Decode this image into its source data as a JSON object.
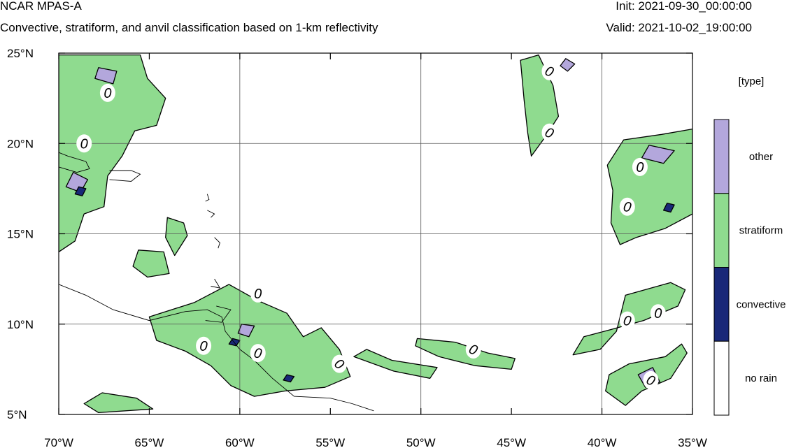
{
  "header": {
    "title": "NCAR MPAS-A",
    "subtitle": "Convective, stratiform, and anvil classification based on 1-km reflectivity",
    "init": "Init: 2021-09-30_00:00:00",
    "valid": "Valid: 2021-10-02_19:00:00"
  },
  "map": {
    "lon_range": [
      -70,
      -35
    ],
    "lat_range": [
      5,
      25
    ],
    "lon_ticks": [
      {
        "value": -70,
        "label": "70°W"
      },
      {
        "value": -65,
        "label": "65°W"
      },
      {
        "value": -60,
        "label": "60°W"
      },
      {
        "value": -55,
        "label": "55°W"
      },
      {
        "value": -50,
        "label": "50°W"
      },
      {
        "value": -45,
        "label": "45°W"
      },
      {
        "value": -40,
        "label": "40°W"
      },
      {
        "value": -35,
        "label": "35°W"
      }
    ],
    "lat_ticks": [
      {
        "value": 25,
        "label": "25°N"
      },
      {
        "value": 20,
        "label": "20°N"
      },
      {
        "value": 15,
        "label": "15°N"
      },
      {
        "value": 10,
        "label": "10°N"
      },
      {
        "value": 5,
        "label": "5°N"
      }
    ],
    "gridlines_lon": [
      -60,
      -50,
      -40
    ],
    "gridlines_lat": [
      20,
      15,
      10
    ],
    "contour_label": "0",
    "contour_label_positions": [
      {
        "lon": -67.3,
        "lat": 22.8,
        "angle": -70
      },
      {
        "lon": -68.6,
        "lat": 20.0,
        "angle": -70
      },
      {
        "lon": -62.0,
        "lat": 8.8,
        "angle": -65
      },
      {
        "lon": -59.0,
        "lat": 11.7,
        "angle": -70
      },
      {
        "lon": -59.0,
        "lat": 8.4,
        "angle": -60
      },
      {
        "lon": -54.5,
        "lat": 7.8,
        "angle": -30
      },
      {
        "lon": -47.1,
        "lat": 8.6,
        "angle": -45
      },
      {
        "lon": -42.9,
        "lat": 24.0,
        "angle": -45
      },
      {
        "lon": -42.9,
        "lat": 20.6,
        "angle": -45
      },
      {
        "lon": -37.9,
        "lat": 18.7,
        "angle": -70
      },
      {
        "lon": -38.6,
        "lat": 16.5,
        "angle": -60
      },
      {
        "lon": -38.6,
        "lat": 10.2,
        "angle": -60
      },
      {
        "lon": -36.9,
        "lat": 10.6,
        "angle": -70
      },
      {
        "lon": -37.3,
        "lat": 6.9,
        "angle": -45
      }
    ],
    "precip_regions": [
      {
        "type": "stratiform",
        "points": [
          [
            -70,
            24.9
          ],
          [
            -65.5,
            24.9
          ],
          [
            -65.1,
            23.6
          ],
          [
            -64.1,
            22.5
          ],
          [
            -64.6,
            21.0
          ],
          [
            -65.8,
            20.7
          ],
          [
            -66.5,
            19.3
          ],
          [
            -67.3,
            18.2
          ],
          [
            -67.5,
            16.5
          ],
          [
            -68.6,
            16.1
          ],
          [
            -69.1,
            14.6
          ],
          [
            -70,
            14.0
          ]
        ]
      },
      {
        "type": "stratiform",
        "points": [
          [
            -64.0,
            15.9
          ],
          [
            -63.1,
            15.6
          ],
          [
            -62.9,
            14.9
          ],
          [
            -63.6,
            13.8
          ],
          [
            -64.1,
            14.8
          ]
        ]
      },
      {
        "type": "stratiform",
        "points": [
          [
            -65.6,
            14.1
          ],
          [
            -64.2,
            14.0
          ],
          [
            -63.9,
            12.8
          ],
          [
            -65.1,
            12.6
          ],
          [
            -65.9,
            13.2
          ]
        ]
      },
      {
        "type": "stratiform",
        "points": [
          [
            -65.0,
            10.4
          ],
          [
            -62.5,
            11.2
          ],
          [
            -60.6,
            12.2
          ],
          [
            -59.0,
            11.3
          ],
          [
            -57.4,
            10.6
          ],
          [
            -56.5,
            9.3
          ],
          [
            -55.5,
            9.8
          ],
          [
            -54.5,
            8.6
          ],
          [
            -53.9,
            7.1
          ],
          [
            -55.3,
            6.5
          ],
          [
            -57.5,
            6.3
          ],
          [
            -59.2,
            6.0
          ],
          [
            -60.5,
            6.6
          ],
          [
            -61.6,
            7.7
          ],
          [
            -63.0,
            8.5
          ],
          [
            -64.6,
            9.1
          ]
        ]
      },
      {
        "type": "stratiform",
        "points": [
          [
            -53.7,
            8.2
          ],
          [
            -51.5,
            7.4
          ],
          [
            -49.5,
            7.0
          ],
          [
            -49.1,
            7.6
          ],
          [
            -51.6,
            8.0
          ],
          [
            -53.0,
            8.6
          ]
        ]
      },
      {
        "type": "stratiform",
        "points": [
          [
            -50.2,
            9.2
          ],
          [
            -48.1,
            9.0
          ],
          [
            -46.3,
            8.4
          ],
          [
            -44.8,
            8.1
          ],
          [
            -45.0,
            7.5
          ],
          [
            -47.0,
            7.7
          ],
          [
            -49.0,
            8.2
          ],
          [
            -50.3,
            8.8
          ]
        ]
      },
      {
        "type": "stratiform",
        "points": [
          [
            -67.6,
            6.2
          ],
          [
            -65.7,
            5.9
          ],
          [
            -64.8,
            5.3
          ],
          [
            -67.8,
            5.1
          ],
          [
            -68.6,
            5.6
          ]
        ]
      },
      {
        "type": "stratiform",
        "points": [
          [
            -44.5,
            24.6
          ],
          [
            -43.5,
            24.9
          ],
          [
            -42.7,
            23.2
          ],
          [
            -42.4,
            21.5
          ],
          [
            -43.1,
            20.4
          ],
          [
            -43.9,
            19.3
          ],
          [
            -44.1,
            20.6
          ],
          [
            -44.3,
            22.4
          ]
        ]
      },
      {
        "type": "stratiform",
        "points": [
          [
            -38.8,
            20.2
          ],
          [
            -36.7,
            20.5
          ],
          [
            -35,
            20.8
          ],
          [
            -35,
            16.1
          ],
          [
            -36.5,
            15.3
          ],
          [
            -38.1,
            14.8
          ],
          [
            -39.0,
            14.4
          ],
          [
            -39.5,
            15.6
          ],
          [
            -39.4,
            17.4
          ],
          [
            -39.7,
            18.8
          ]
        ]
      },
      {
        "type": "stratiform",
        "points": [
          [
            -38.7,
            11.6
          ],
          [
            -36.2,
            12.3
          ],
          [
            -35.4,
            11.9
          ],
          [
            -35.8,
            11.0
          ],
          [
            -37.7,
            10.2
          ],
          [
            -39.5,
            9.7
          ],
          [
            -41.0,
            9.3
          ],
          [
            -41.6,
            8.3
          ],
          [
            -40.1,
            8.6
          ],
          [
            -39.2,
            9.6
          ]
        ]
      },
      {
        "type": "stratiform",
        "points": [
          [
            -38.5,
            7.8
          ],
          [
            -36.5,
            8.2
          ],
          [
            -35.6,
            8.9
          ],
          [
            -35.3,
            8.4
          ],
          [
            -36.2,
            7.0
          ],
          [
            -37.8,
            6.3
          ],
          [
            -38.7,
            5.5
          ],
          [
            -39.8,
            6.3
          ],
          [
            -39.6,
            7.2
          ]
        ]
      },
      {
        "type": "other",
        "points": [
          [
            -37.4,
            19.9
          ],
          [
            -36.0,
            19.6
          ],
          [
            -36.6,
            18.9
          ],
          [
            -37.8,
            19.2
          ]
        ]
      },
      {
        "type": "other",
        "points": [
          [
            -67.8,
            24.2
          ],
          [
            -66.8,
            24.0
          ],
          [
            -67.0,
            23.3
          ],
          [
            -68.0,
            23.6
          ]
        ]
      },
      {
        "type": "other",
        "points": [
          [
            -69.2,
            18.4
          ],
          [
            -68.4,
            18.0
          ],
          [
            -68.8,
            17.3
          ],
          [
            -69.6,
            17.6
          ]
        ]
      },
      {
        "type": "other",
        "points": [
          [
            -59.9,
            10.0
          ],
          [
            -59.2,
            9.9
          ],
          [
            -59.5,
            9.3
          ],
          [
            -60.1,
            9.5
          ]
        ]
      },
      {
        "type": "other",
        "points": [
          [
            -42.0,
            24.7
          ],
          [
            -41.5,
            24.4
          ],
          [
            -41.9,
            24.0
          ],
          [
            -42.3,
            24.3
          ]
        ]
      },
      {
        "type": "other",
        "points": [
          [
            -38.0,
            7.2
          ],
          [
            -37.2,
            7.6
          ],
          [
            -36.8,
            6.8
          ],
          [
            -37.6,
            6.5
          ]
        ]
      },
      {
        "type": "convective",
        "points": [
          [
            -68.9,
            17.6
          ],
          [
            -68.5,
            17.5
          ],
          [
            -68.7,
            17.1
          ],
          [
            -69.1,
            17.2
          ]
        ]
      },
      {
        "type": "convective",
        "points": [
          [
            -60.4,
            9.2
          ],
          [
            -60.0,
            9.1
          ],
          [
            -60.2,
            8.8
          ],
          [
            -60.6,
            8.9
          ]
        ]
      },
      {
        "type": "convective",
        "points": [
          [
            -36.4,
            16.7
          ],
          [
            -36.0,
            16.6
          ],
          [
            -36.2,
            16.2
          ],
          [
            -36.6,
            16.3
          ]
        ]
      },
      {
        "type": "convective",
        "points": [
          [
            -57.4,
            7.2
          ],
          [
            -57.0,
            7.1
          ],
          [
            -57.2,
            6.8
          ],
          [
            -57.6,
            6.9
          ]
        ]
      }
    ],
    "coastlines": [
      [
        [
          -70,
          12.2
        ],
        [
          -68.5,
          11.6
        ],
        [
          -67.0,
          10.8
        ],
        [
          -65.0,
          10.2
        ],
        [
          -63.0,
          10.7
        ],
        [
          -61.8,
          10.8
        ],
        [
          -61.0,
          10.4
        ],
        [
          -60.8,
          9.6
        ],
        [
          -60.0,
          8.6
        ],
        [
          -59.2,
          8.0
        ],
        [
          -58.2,
          7.0
        ],
        [
          -57.0,
          6.0
        ],
        [
          -55.0,
          5.9
        ],
        [
          -53.8,
          5.6
        ],
        [
          -52.6,
          5.2
        ]
      ],
      [
        [
          -70,
          18.7
        ],
        [
          -69.0,
          18.4
        ],
        [
          -68.3,
          18.6
        ],
        [
          -68.5,
          19.0
        ],
        [
          -69.5,
          19.3
        ],
        [
          -70,
          19.5
        ]
      ],
      [
        [
          -67.2,
          18.5
        ],
        [
          -66.0,
          18.5
        ],
        [
          -65.5,
          18.3
        ],
        [
          -66.0,
          17.9
        ],
        [
          -67.2,
          18.0
        ]
      ],
      [
        [
          -61.8,
          17.2
        ],
        [
          -61.7,
          16.9
        ],
        [
          -61.9,
          16.8
        ]
      ],
      [
        [
          -61.8,
          16.3
        ],
        [
          -61.4,
          16.1
        ],
        [
          -61.6,
          15.9
        ]
      ],
      [
        [
          -61.4,
          14.8
        ],
        [
          -61.1,
          14.5
        ],
        [
          -61.2,
          14.2
        ]
      ],
      [
        [
          -61.4,
          12.5
        ],
        [
          -61.1,
          12.0
        ],
        [
          -61.6,
          12.1
        ]
      ],
      [
        [
          -61.3,
          11.0
        ],
        [
          -60.5,
          10.8
        ],
        [
          -61.0,
          10.1
        ],
        [
          -61.9,
          10.2
        ]
      ]
    ]
  },
  "colorbar": {
    "title": "[type]",
    "categories": [
      {
        "label": "other",
        "color": "#b3a7dc"
      },
      {
        "label": "stratiform",
        "color": "#8fdb8f"
      },
      {
        "label": "convective",
        "color": "#192878"
      },
      {
        "label": "no rain",
        "color": "#ffffff"
      }
    ]
  }
}
